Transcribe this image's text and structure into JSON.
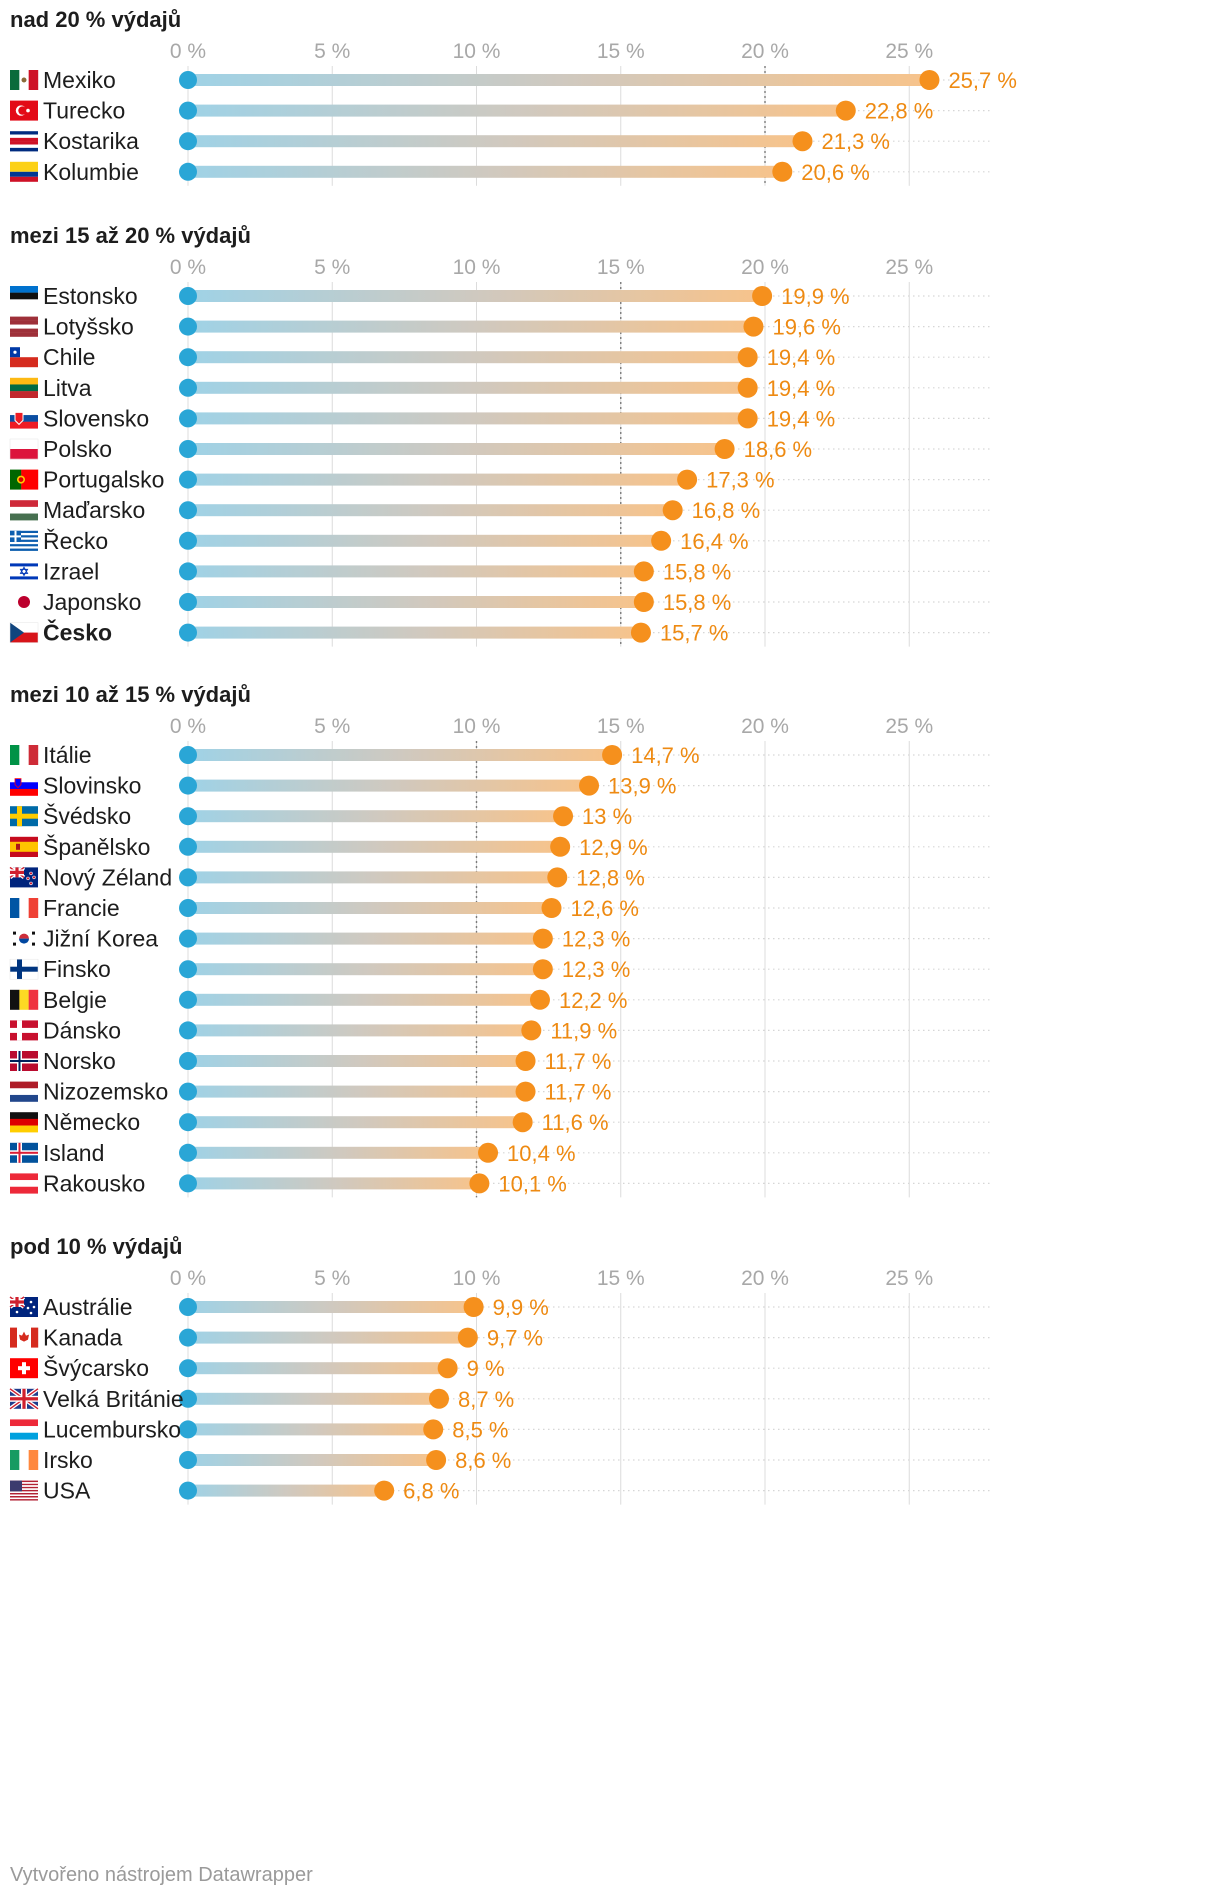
{
  "footer": "Vytvořeno nástrojem Datawrapper",
  "colors": {
    "start": "#2aa6d6",
    "end": "#f5901d",
    "bar_start": "#9fd2e6",
    "bar_end": "#f7c38b",
    "value": "#ee8a12",
    "grid": "#dcdcdc"
  },
  "chart_data": {
    "type": "dot",
    "xlim": [
      0,
      27
    ],
    "ticks": [
      0,
      5,
      10,
      15,
      20,
      25
    ],
    "tick_labels": [
      "0 %",
      "5 %",
      "10 %",
      "15 %",
      "20 %",
      "25 %"
    ],
    "groups": [
      {
        "title": "nad 20 % výdajů",
        "threshold": 20,
        "items": [
          {
            "country": "Mexiko",
            "flag": "mx",
            "value": 25.7,
            "label": "25,7 %",
            "bold": false
          },
          {
            "country": "Turecko",
            "flag": "tr",
            "value": 22.8,
            "label": "22,8 %",
            "bold": false
          },
          {
            "country": "Kostarika",
            "flag": "cr",
            "value": 21.3,
            "label": "21,3 %",
            "bold": false
          },
          {
            "country": "Kolumbie",
            "flag": "co",
            "value": 20.6,
            "label": "20,6 %",
            "bold": false
          }
        ]
      },
      {
        "title": "mezi 15 až 20 % výdajů",
        "threshold": 15,
        "items": [
          {
            "country": "Estonsko",
            "flag": "ee",
            "value": 19.9,
            "label": "19,9 %",
            "bold": false
          },
          {
            "country": "Lotyšsko",
            "flag": "lv",
            "value": 19.6,
            "label": "19,6 %",
            "bold": false
          },
          {
            "country": "Chile",
            "flag": "cl",
            "value": 19.4,
            "label": "19,4 %",
            "bold": false
          },
          {
            "country": "Litva",
            "flag": "lt",
            "value": 19.4,
            "label": "19,4 %",
            "bold": false
          },
          {
            "country": "Slovensko",
            "flag": "sk",
            "value": 19.4,
            "label": "19,4 %",
            "bold": false
          },
          {
            "country": "Polsko",
            "flag": "pl",
            "value": 18.6,
            "label": "18,6 %",
            "bold": false
          },
          {
            "country": "Portugalsko",
            "flag": "pt",
            "value": 17.3,
            "label": "17,3 %",
            "bold": false
          },
          {
            "country": "Maďarsko",
            "flag": "hu",
            "value": 16.8,
            "label": "16,8 %",
            "bold": false
          },
          {
            "country": "Řecko",
            "flag": "gr",
            "value": 16.4,
            "label": "16,4 %",
            "bold": false
          },
          {
            "country": "Izrael",
            "flag": "il",
            "value": 15.8,
            "label": "15,8 %",
            "bold": false
          },
          {
            "country": "Japonsko",
            "flag": "jp",
            "value": 15.8,
            "label": "15,8 %",
            "bold": false
          },
          {
            "country": "Česko",
            "flag": "cz",
            "value": 15.7,
            "label": "15,7 %",
            "bold": true
          }
        ]
      },
      {
        "title": "mezi 10 až 15 % výdajů",
        "threshold": 10,
        "items": [
          {
            "country": "Itálie",
            "flag": "it",
            "value": 14.7,
            "label": "14,7 %",
            "bold": false
          },
          {
            "country": "Slovinsko",
            "flag": "si",
            "value": 13.9,
            "label": "13,9 %",
            "bold": false
          },
          {
            "country": "Švédsko",
            "flag": "se",
            "value": 13.0,
            "label": "13 %",
            "bold": false
          },
          {
            "country": "Španělsko",
            "flag": "es",
            "value": 12.9,
            "label": "12,9 %",
            "bold": false
          },
          {
            "country": "Nový Zéland",
            "flag": "nz",
            "value": 12.8,
            "label": "12,8 %",
            "bold": false
          },
          {
            "country": "Francie",
            "flag": "fr",
            "value": 12.6,
            "label": "12,6 %",
            "bold": false
          },
          {
            "country": "Jižní Korea",
            "flag": "kr",
            "value": 12.3,
            "label": "12,3 %",
            "bold": false
          },
          {
            "country": "Finsko",
            "flag": "fi",
            "value": 12.3,
            "label": "12,3 %",
            "bold": false
          },
          {
            "country": "Belgie",
            "flag": "be",
            "value": 12.2,
            "label": "12,2 %",
            "bold": false
          },
          {
            "country": "Dánsko",
            "flag": "dk",
            "value": 11.9,
            "label": "11,9 %",
            "bold": false
          },
          {
            "country": "Norsko",
            "flag": "no",
            "value": 11.7,
            "label": "11,7 %",
            "bold": false
          },
          {
            "country": "Nizozemsko",
            "flag": "nl",
            "value": 11.7,
            "label": "11,7 %",
            "bold": false
          },
          {
            "country": "Německo",
            "flag": "de",
            "value": 11.6,
            "label": "11,6 %",
            "bold": false
          },
          {
            "country": "Island",
            "flag": "is",
            "value": 10.4,
            "label": "10,4 %",
            "bold": false
          },
          {
            "country": "Rakousko",
            "flag": "at",
            "value": 10.1,
            "label": "10,1 %",
            "bold": false
          }
        ]
      },
      {
        "title": "pod 10 % výdajů",
        "threshold": null,
        "items": [
          {
            "country": "Austrálie",
            "flag": "au",
            "value": 9.9,
            "label": "9,9 %",
            "bold": false
          },
          {
            "country": "Kanada",
            "flag": "ca",
            "value": 9.7,
            "label": "9,7 %",
            "bold": false
          },
          {
            "country": "Švýcarsko",
            "flag": "ch",
            "value": 9.0,
            "label": "9 %",
            "bold": false
          },
          {
            "country": "Velká Británie",
            "flag": "gb",
            "value": 8.7,
            "label": "8,7 %",
            "bold": false
          },
          {
            "country": "Lucembursko",
            "flag": "lu",
            "value": 8.5,
            "label": "8,5 %",
            "bold": false
          },
          {
            "country": "Irsko",
            "flag": "ie",
            "value": 8.6,
            "label": "8,6 %",
            "bold": false
          },
          {
            "country": "USA",
            "flag": "us",
            "value": 6.8,
            "label": "6,8 %",
            "bold": false
          }
        ]
      }
    ]
  }
}
